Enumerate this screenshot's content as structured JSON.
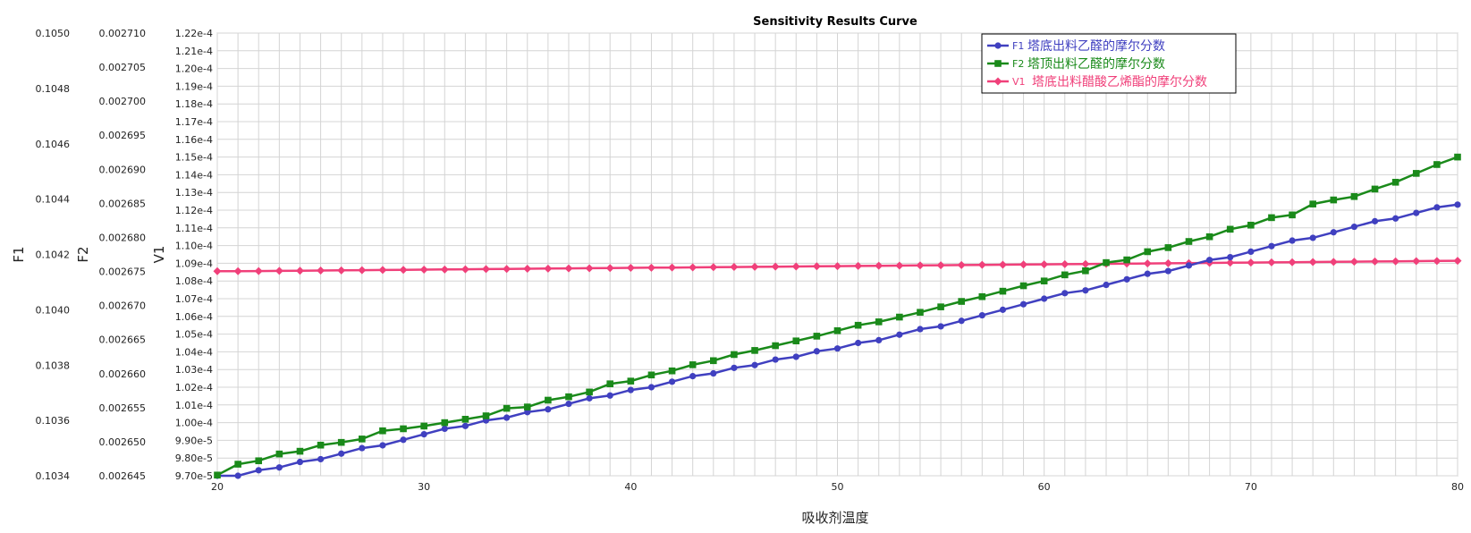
{
  "chart_data": {
    "type": "line",
    "title": "Sensitivity Results Curve",
    "xlabel": "吸收剂温度",
    "xlim": [
      20,
      80
    ],
    "x_ticks": [
      "20",
      "30",
      "40",
      "50",
      "60",
      "70",
      "80"
    ],
    "x": [
      20,
      21,
      22,
      23,
      24,
      25,
      26,
      27,
      28,
      29,
      30,
      31,
      32,
      33,
      34,
      35,
      36,
      37,
      38,
      39,
      40,
      41,
      42,
      43,
      44,
      45,
      46,
      47,
      48,
      49,
      50,
      51,
      52,
      53,
      54,
      55,
      56,
      57,
      58,
      59,
      60,
      61,
      62,
      63,
      64,
      65,
      66,
      67,
      68,
      69,
      70,
      71,
      72,
      73,
      74,
      75,
      76,
      77,
      78,
      79,
      80
    ],
    "axes": [
      {
        "key": "F1",
        "label": "F1",
        "lim": [
          0.1034,
          0.105
        ],
        "ticks": [
          "0.1034",
          "0.1036",
          "0.1038",
          "0.1040",
          "0.1042",
          "0.1044",
          "0.1046",
          "0.1048",
          "0.1050"
        ]
      },
      {
        "key": "F2",
        "label": "F2",
        "lim": [
          0.002645,
          0.00271
        ],
        "ticks": [
          "0.002645",
          "0.002650",
          "0.002655",
          "0.002660",
          "0.002665",
          "0.002670",
          "0.002675",
          "0.002680",
          "0.002685",
          "0.002690",
          "0.002695",
          "0.002700",
          "0.002705",
          "0.002710"
        ]
      },
      {
        "key": "V1",
        "label": "V1",
        "lim": [
          9.7e-05,
          0.000122
        ],
        "ticks": [
          "9.70e-5",
          "9.80e-5",
          "9.90e-5",
          "1.00e-4",
          "1.01e-4",
          "1.02e-4",
          "1.03e-4",
          "1.04e-4",
          "1.05e-4",
          "1.06e-4",
          "1.07e-4",
          "1.08e-4",
          "1.09e-4",
          "1.10e-4",
          "1.11e-4",
          "1.12e-4",
          "1.13e-4",
          "1.14e-4",
          "1.15e-4",
          "1.16e-4",
          "1.17e-4",
          "1.18e-4",
          "1.19e-4",
          "1.20e-4",
          "1.21e-4",
          "1.22e-4"
        ]
      }
    ],
    "series": [
      {
        "key": "F1",
        "name": "塔底出料乙醛的摩尔分数",
        "axis": "F1",
        "color": "#4040c0",
        "marker": "circle",
        "values": [
          0.1034,
          0.1034,
          0.10342,
          0.10343,
          0.10345,
          0.10346,
          0.10348,
          0.1035,
          0.10351,
          0.10353,
          0.10355,
          0.10357,
          0.10358,
          0.1036,
          0.10361,
          0.10363,
          0.10364,
          0.10366,
          0.10368,
          0.10369,
          0.10371,
          0.10372,
          0.10374,
          0.10376,
          0.10377,
          0.10379,
          0.1038,
          0.10382,
          0.10383,
          0.10385,
          0.10386,
          0.10388,
          0.10389,
          0.10391,
          0.10393,
          0.10394,
          0.10396,
          0.10398,
          0.104,
          0.10402,
          0.10404,
          0.10406,
          0.10407,
          0.10409,
          0.10411,
          0.10413,
          0.10414,
          0.10416,
          0.10418,
          0.10419,
          0.10421,
          0.10423,
          0.10425,
          0.10426,
          0.10428,
          0.1043,
          0.10432,
          0.10433,
          0.10435,
          0.10437,
          0.10438
        ]
      },
      {
        "key": "F2",
        "name": "塔顶出料乙醛的摩尔分数",
        "axis": "F2",
        "color": "#1a8a1a",
        "marker": "square",
        "values": [
          0.0026451,
          0.0026467,
          0.0026472,
          0.0026482,
          0.0026486,
          0.0026495,
          0.0026499,
          0.0026504,
          0.0026516,
          0.0026519,
          0.0026523,
          0.0026528,
          0.0026533,
          0.0026538,
          0.0026549,
          0.0026551,
          0.0026561,
          0.0026566,
          0.0026573,
          0.0026585,
          0.0026589,
          0.0026598,
          0.0026604,
          0.0026613,
          0.0026619,
          0.0026628,
          0.0026634,
          0.0026641,
          0.0026648,
          0.0026655,
          0.0026663,
          0.0026671,
          0.0026676,
          0.0026683,
          0.002669,
          0.0026698,
          0.0026706,
          0.0026713,
          0.0026721,
          0.0026729,
          0.0026736,
          0.0026745,
          0.0026751,
          0.0026763,
          0.0026767,
          0.0026779,
          0.0026785,
          0.0026794,
          0.0026801,
          0.0026812,
          0.0026818,
          0.0026829,
          0.0026833,
          0.0026849,
          0.0026855,
          0.002686,
          0.0026871,
          0.0026881,
          0.0026894,
          0.0026907,
          0.0026918
        ]
      },
      {
        "key": "V1",
        "name": "塔底出料醋酸乙烯酯的摩尔分数",
        "axis": "V1",
        "color": "#f0407a",
        "marker": "diamond",
        "values": [
          0.00010855,
          0.00010855,
          0.00010856,
          0.00010857,
          0.00010858,
          0.00010859,
          0.0001086,
          0.00010861,
          0.00010862,
          0.00010863,
          0.00010864,
          0.00010865,
          0.00010866,
          0.00010867,
          0.00010868,
          0.00010869,
          0.0001087,
          0.00010871,
          0.00010872,
          0.00010873,
          0.00010874,
          0.00010875,
          0.00010876,
          0.00010877,
          0.00010878,
          0.00010879,
          0.0001088,
          0.00010881,
          0.00010882,
          0.00010883,
          0.00010884,
          0.00010885,
          0.00010886,
          0.00010887,
          0.00010888,
          0.00010889,
          0.0001089,
          0.00010891,
          0.00010892,
          0.00010893,
          0.00010894,
          0.00010895,
          0.00010896,
          0.00010897,
          0.00010898,
          0.00010899,
          0.000109,
          0.00010901,
          0.00010902,
          0.00010903,
          0.00010904,
          0.00010905,
          0.00010906,
          0.00010907,
          0.00010908,
          0.00010909,
          0.0001091,
          0.00010911,
          0.00010912,
          0.00010913,
          0.00010914
        ]
      }
    ],
    "grid": true,
    "legend_position": "top-right"
  }
}
